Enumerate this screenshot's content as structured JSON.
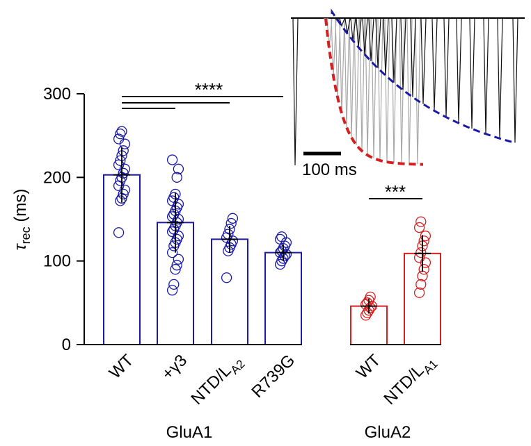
{
  "chart_data": {
    "type": "bar",
    "ylabel_symbol": "τ",
    "ylabel_sub": "rec",
    "ylabel_unit": "(ms)",
    "ylim": [
      0,
      300
    ],
    "yticks": [
      0,
      100,
      200,
      300
    ],
    "categories": [
      {
        "main": "WT",
        "sub": "",
        "group": "GluA1",
        "color": "#1a1aa6",
        "mean": 203,
        "sd": 33,
        "points": [
          134,
          172,
          175,
          180,
          185,
          190,
          196,
          200,
          205,
          210,
          215,
          220,
          226,
          232,
          240,
          246,
          252,
          255
        ]
      },
      {
        "main": "+γ3",
        "sub": "",
        "group": "GluA1",
        "color": "#1a1aa6",
        "mean": 146,
        "sd": 36,
        "points": [
          65,
          72,
          90,
          95,
          102,
          110,
          118,
          122,
          126,
          130,
          135,
          138,
          142,
          146,
          150,
          153,
          156,
          160,
          164,
          168,
          172,
          176,
          180,
          200,
          210,
          221
        ]
      },
      {
        "main": "NTD/L",
        "sub": "A2",
        "group": "GluA1",
        "color": "#1a1aa6",
        "mean": 126,
        "sd": 16,
        "points": [
          80,
          112,
          116,
          120,
          124,
          128,
          132,
          138,
          145,
          151
        ]
      },
      {
        "main": "R739G",
        "sub": "",
        "group": "GluA1",
        "color": "#1a1aa6",
        "mean": 110,
        "sd": 10,
        "points": [
          96,
          100,
          103,
          106,
          108,
          110,
          112,
          115,
          118,
          122,
          126,
          129
        ]
      },
      {
        "main": "WT",
        "sub": "",
        "group": "GluA2",
        "color": "#d42020",
        "mean": 46,
        "sd": 9,
        "points": [
          35,
          38,
          41,
          44,
          46,
          48,
          50,
          53,
          57
        ]
      },
      {
        "main": "NTD/L",
        "sub": "A1",
        "group": "GluA2",
        "color": "#d42020",
        "mean": 109,
        "sd": 22,
        "points": [
          62,
          72,
          82,
          90,
          98,
          104,
          110,
          118,
          124,
          130,
          140,
          147
        ]
      }
    ],
    "groups": [
      "GluA1",
      "GluA2"
    ],
    "significance": [
      {
        "label": "****",
        "from": 0,
        "to": [
          1,
          2,
          3
        ]
      },
      {
        "label": "***",
        "from": 4,
        "to": [
          5
        ]
      }
    ],
    "inset": {
      "scale_bar_label": "100 ms",
      "fit_colors": [
        "#d42020",
        "#1a1aa6"
      ]
    }
  }
}
